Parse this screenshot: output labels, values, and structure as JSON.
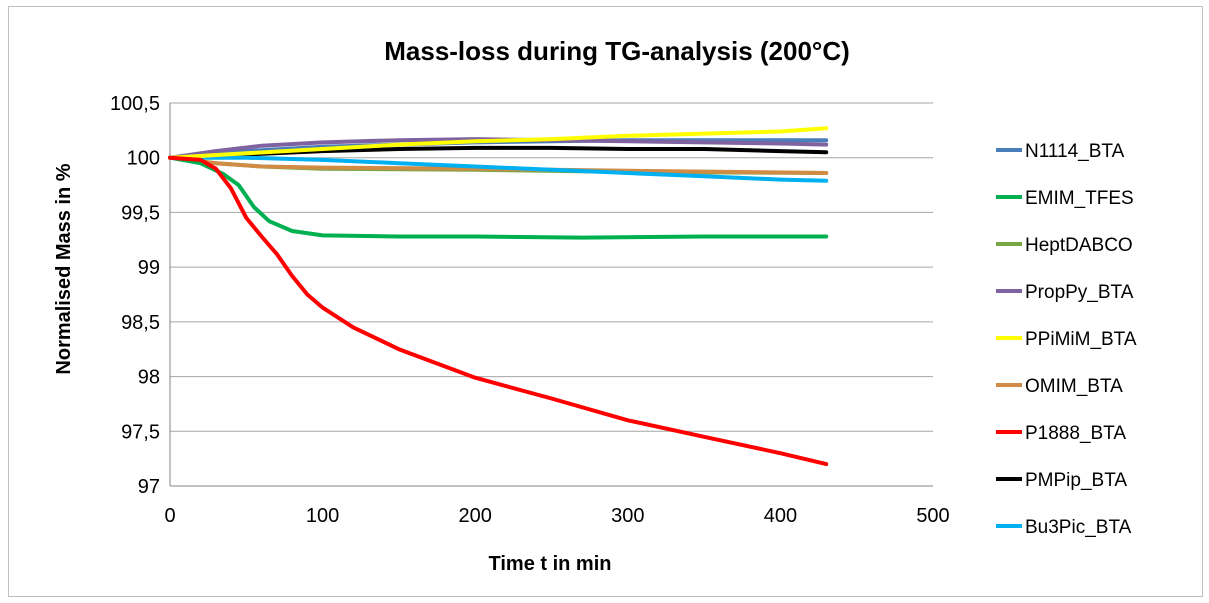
{
  "chart_data": {
    "type": "line",
    "title": "Mass-loss during TG-analysis  (200°C)",
    "xlabel": "Time t in min",
    "ylabel": "Normalised Mass in %",
    "xlim": [
      0,
      500
    ],
    "ylim": [
      97,
      100.5
    ],
    "xticks": [
      0,
      100,
      200,
      300,
      400,
      500
    ],
    "xtick_labels": [
      "0",
      "100",
      "200",
      "300",
      "400",
      "500"
    ],
    "yticks": [
      97,
      97.5,
      98,
      98.5,
      99,
      99.5,
      100,
      100.5
    ],
    "ytick_labels": [
      "97",
      "97,5",
      "98",
      "98,5",
      "99",
      "99,5",
      "100",
      "100,5"
    ],
    "grid": "horizontal",
    "legend": "right",
    "series": [
      {
        "name": "N1114_BTA",
        "color": "#4a7ebb",
        "points": [
          [
            0,
            100
          ],
          [
            50,
            100.06
          ],
          [
            100,
            100.1
          ],
          [
            150,
            100.12
          ],
          [
            200,
            100.14
          ],
          [
            250,
            100.15
          ],
          [
            300,
            100.16
          ],
          [
            350,
            100.16
          ],
          [
            400,
            100.16
          ],
          [
            430,
            100.16
          ]
        ]
      },
      {
        "name": "EMIM_TFES",
        "color": "#00b050",
        "points": [
          [
            0,
            100
          ],
          [
            20,
            99.95
          ],
          [
            35,
            99.85
          ],
          [
            45,
            99.75
          ],
          [
            55,
            99.55
          ],
          [
            65,
            99.42
          ],
          [
            80,
            99.33
          ],
          [
            100,
            99.29
          ],
          [
            150,
            99.28
          ],
          [
            200,
            99.28
          ],
          [
            270,
            99.27
          ],
          [
            350,
            99.28
          ],
          [
            430,
            99.28
          ]
        ]
      },
      {
        "name": "HeptDABCO",
        "color": "#77a743",
        "points": [
          [
            0,
            100
          ],
          [
            30,
            99.95
          ],
          [
            60,
            99.92
          ],
          [
            100,
            99.9
          ],
          [
            200,
            99.89
          ],
          [
            300,
            99.87
          ],
          [
            430,
            99.86
          ]
        ]
      },
      {
        "name": "PropPy_BTA",
        "color": "#7f62a0",
        "points": [
          [
            0,
            100
          ],
          [
            30,
            100.06
          ],
          [
            60,
            100.11
          ],
          [
            100,
            100.14
          ],
          [
            150,
            100.16
          ],
          [
            200,
            100.17
          ],
          [
            300,
            100.15
          ],
          [
            400,
            100.13
          ],
          [
            430,
            100.12
          ]
        ]
      },
      {
        "name": "PPiMiM_BTA",
        "color": "#ffff00",
        "points": [
          [
            0,
            100
          ],
          [
            50,
            100.04
          ],
          [
            100,
            100.08
          ],
          [
            150,
            100.12
          ],
          [
            200,
            100.15
          ],
          [
            250,
            100.17
          ],
          [
            300,
            100.2
          ],
          [
            350,
            100.22
          ],
          [
            400,
            100.24
          ],
          [
            430,
            100.27
          ]
        ]
      },
      {
        "name": "OMIM_BTA",
        "color": "#d08b45",
        "points": [
          [
            0,
            100
          ],
          [
            30,
            99.95
          ],
          [
            60,
            99.92
          ],
          [
            100,
            99.91
          ],
          [
            200,
            99.9
          ],
          [
            300,
            99.88
          ],
          [
            430,
            99.86
          ]
        ]
      },
      {
        "name": "P1888_BTA",
        "color": "#ff0000",
        "points": [
          [
            0,
            100
          ],
          [
            20,
            99.98
          ],
          [
            30,
            99.9
          ],
          [
            40,
            99.72
          ],
          [
            50,
            99.45
          ],
          [
            60,
            99.28
          ],
          [
            70,
            99.12
          ],
          [
            80,
            98.92
          ],
          [
            90,
            98.75
          ],
          [
            100,
            98.63
          ],
          [
            120,
            98.45
          ],
          [
            150,
            98.25
          ],
          [
            200,
            97.99
          ],
          [
            250,
            97.8
          ],
          [
            300,
            97.6
          ],
          [
            350,
            97.45
          ],
          [
            400,
            97.3
          ],
          [
            430,
            97.2
          ]
        ]
      },
      {
        "name": "PMPip_BTA",
        "color": "#000000",
        "points": [
          [
            0,
            100
          ],
          [
            50,
            100.03
          ],
          [
            100,
            100.06
          ],
          [
            150,
            100.08
          ],
          [
            200,
            100.09
          ],
          [
            250,
            100.09
          ],
          [
            300,
            100.08
          ],
          [
            350,
            100.08
          ],
          [
            400,
            100.06
          ],
          [
            430,
            100.05
          ]
        ]
      },
      {
        "name": "Bu3Pic_BTA",
        "color": "#00b0f0",
        "points": [
          [
            0,
            100
          ],
          [
            50,
            100.0
          ],
          [
            100,
            99.98
          ],
          [
            150,
            99.95
          ],
          [
            200,
            99.92
          ],
          [
            250,
            99.89
          ],
          [
            300,
            99.86
          ],
          [
            350,
            99.83
          ],
          [
            400,
            99.8
          ],
          [
            430,
            99.79
          ]
        ]
      }
    ]
  }
}
